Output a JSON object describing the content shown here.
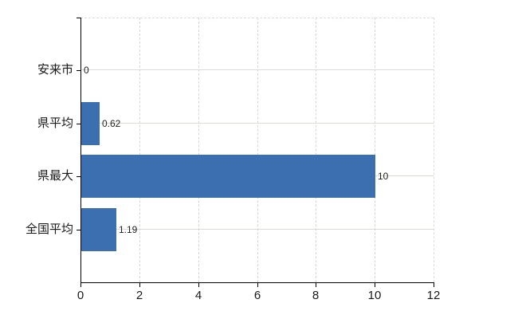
{
  "chart_data": {
    "type": "bar",
    "orientation": "horizontal",
    "title": "",
    "categories": [
      "安来市",
      "県平均",
      "県最大",
      "全国平均"
    ],
    "values": [
      0,
      0.62,
      10,
      1.19
    ],
    "value_labels": [
      "0",
      "0.62",
      "10",
      "1.19"
    ],
    "x_ticks": [
      0,
      2,
      4,
      6,
      8,
      10,
      12
    ],
    "xlim": [
      0,
      12
    ],
    "grid": true,
    "legend": false,
    "bar_color": "#3c6fb0",
    "axis_color": "#000000",
    "gridline_color": "#d9ddd4",
    "dashed_border_color": "#e0dade",
    "label_color": "#1a1a1a"
  }
}
